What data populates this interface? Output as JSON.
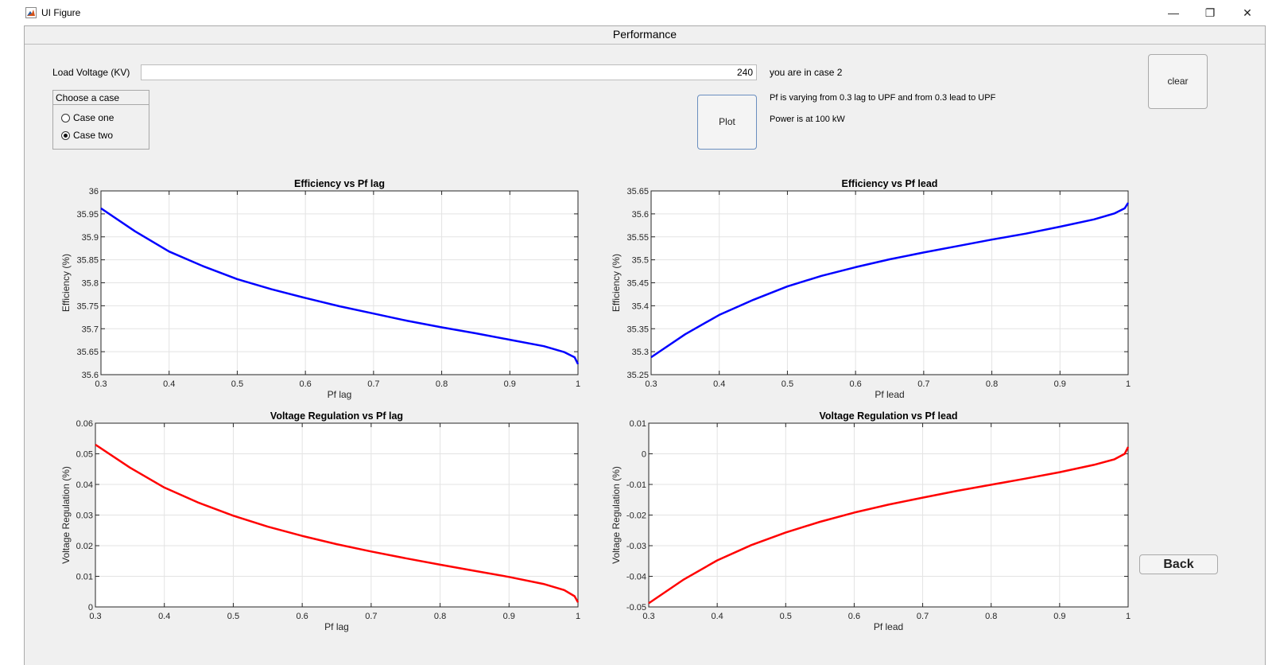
{
  "window": {
    "title": "UI Figure",
    "min_glyph": "—",
    "max_glyph": "❐",
    "close_glyph": "✕",
    "app_icon": "matlab-logo-icon"
  },
  "panel": {
    "title": "Performance"
  },
  "controls": {
    "load_voltage_label": "Load Voltage (KV)",
    "load_voltage_value": "240",
    "case_group_title": "Choose a case",
    "case_options": [
      {
        "label": "Case one",
        "selected": false
      },
      {
        "label": "Case two",
        "selected": true
      }
    ],
    "plot_label": "Plot",
    "clear_label": "clear",
    "back_label": "Back"
  },
  "status": {
    "case_text": "you are in case 2",
    "pf_text": "Pf is varying from 0.3 lag to UPF and from 0.3 lead to UPF",
    "power_text": "Power is at 100 kW"
  },
  "chart_data": [
    {
      "type": "line",
      "title": "Efficiency vs Pf lag",
      "xlabel": "Pf lag",
      "ylabel": "Efficiency (%)",
      "xlim": [
        0.3,
        1
      ],
      "ylim": [
        35.6,
        36
      ],
      "xticks": [
        "0.3",
        "0.4",
        "0.5",
        "0.6",
        "0.7",
        "0.8",
        "0.9",
        "1"
      ],
      "yticks": [
        "35.6",
        "35.65",
        "35.7",
        "35.75",
        "35.8",
        "35.85",
        "35.9",
        "35.95",
        "36"
      ],
      "grid": true,
      "color": "#0000ff",
      "x": [
        0.3,
        0.35,
        0.4,
        0.45,
        0.5,
        0.55,
        0.6,
        0.65,
        0.7,
        0.75,
        0.8,
        0.85,
        0.9,
        0.95,
        0.98,
        0.995,
        1.0
      ],
      "y": [
        35.962,
        35.912,
        35.868,
        35.836,
        35.808,
        35.786,
        35.767,
        35.749,
        35.733,
        35.717,
        35.703,
        35.69,
        35.676,
        35.662,
        35.649,
        35.638,
        35.623
      ]
    },
    {
      "type": "line",
      "title": "Efficiency vs Pf lead",
      "xlabel": "Pf lead",
      "ylabel": "Efficiency (%)",
      "xlim": [
        0.3,
        1
      ],
      "ylim": [
        35.25,
        35.65
      ],
      "xticks": [
        "0.3",
        "0.4",
        "0.5",
        "0.6",
        "0.7",
        "0.8",
        "0.9",
        "1"
      ],
      "yticks": [
        "35.25",
        "35.3",
        "35.35",
        "35.4",
        "35.45",
        "35.5",
        "35.55",
        "35.6",
        "35.65"
      ],
      "grid": true,
      "color": "#0000ff",
      "x": [
        0.3,
        0.35,
        0.4,
        0.45,
        0.5,
        0.55,
        0.6,
        0.65,
        0.7,
        0.75,
        0.8,
        0.85,
        0.9,
        0.95,
        0.98,
        0.995,
        1.0
      ],
      "y": [
        35.288,
        35.338,
        35.38,
        35.413,
        35.442,
        35.465,
        35.484,
        35.501,
        35.516,
        35.53,
        35.544,
        35.557,
        35.572,
        35.588,
        35.601,
        35.612,
        35.624
      ]
    },
    {
      "type": "line",
      "title": "Voltage Regulation vs Pf lag",
      "xlabel": "Pf lag",
      "ylabel": "Voltage Regulation (%)",
      "xlim": [
        0.3,
        1
      ],
      "ylim": [
        0,
        0.06
      ],
      "xticks": [
        "0.3",
        "0.4",
        "0.5",
        "0.6",
        "0.7",
        "0.8",
        "0.9",
        "1"
      ],
      "yticks": [
        "0",
        "0.01",
        "0.02",
        "0.03",
        "0.04",
        "0.05",
        "0.06"
      ],
      "grid": true,
      "color": "#ff0000",
      "x": [
        0.3,
        0.35,
        0.4,
        0.45,
        0.5,
        0.55,
        0.6,
        0.65,
        0.7,
        0.75,
        0.8,
        0.85,
        0.9,
        0.95,
        0.98,
        0.995,
        1.0
      ],
      "y": [
        0.053,
        0.0455,
        0.039,
        0.034,
        0.0298,
        0.0262,
        0.0232,
        0.0205,
        0.0181,
        0.0159,
        0.0138,
        0.0118,
        0.0098,
        0.0075,
        0.0055,
        0.0035,
        0.0015
      ]
    },
    {
      "type": "line",
      "title": "Voltage Regulation vs Pf lead",
      "xlabel": "Pf lead",
      "ylabel": "Voltage Regulation (%)",
      "xlim": [
        0.3,
        1
      ],
      "ylim": [
        -0.05,
        0.01
      ],
      "xticks": [
        "0.3",
        "0.4",
        "0.5",
        "0.6",
        "0.7",
        "0.8",
        "0.9",
        "1"
      ],
      "yticks": [
        "-0.05",
        "-0.04",
        "-0.03",
        "-0.02",
        "-0.01",
        "0",
        "0.01"
      ],
      "grid": true,
      "color": "#ff0000",
      "x": [
        0.3,
        0.35,
        0.4,
        0.45,
        0.5,
        0.55,
        0.6,
        0.65,
        0.7,
        0.75,
        0.8,
        0.85,
        0.9,
        0.95,
        0.98,
        0.995,
        1.0
      ],
      "y": [
        -0.0488,
        -0.0412,
        -0.0348,
        -0.0298,
        -0.0257,
        -0.0222,
        -0.0192,
        -0.0166,
        -0.0143,
        -0.0121,
        -0.0101,
        -0.0081,
        -0.006,
        -0.0036,
        -0.0018,
        0.0,
        0.0022
      ]
    }
  ]
}
